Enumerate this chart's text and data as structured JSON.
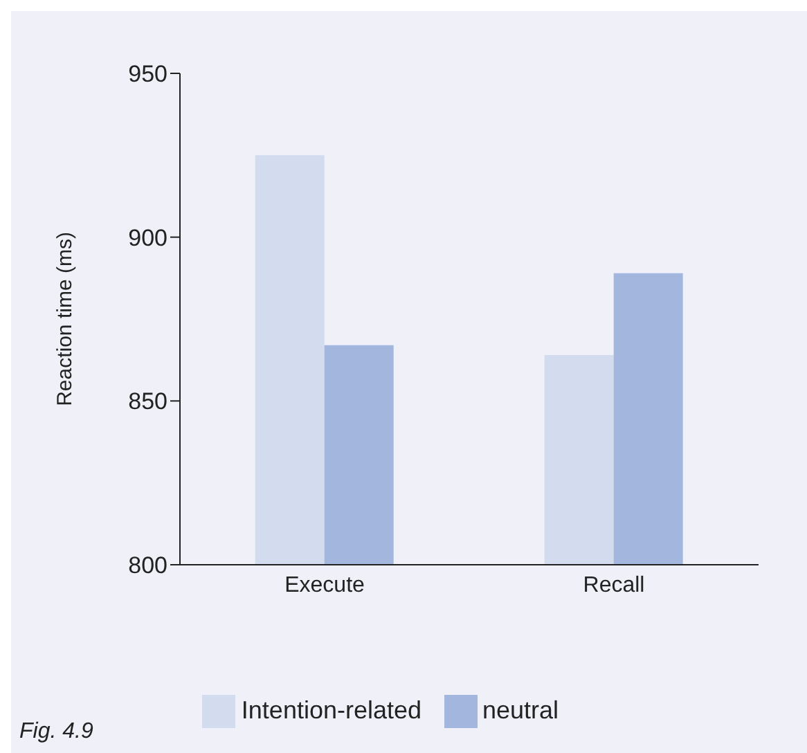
{
  "chart_data": {
    "type": "bar",
    "ylabel": "Reaction time (ms)",
    "categories": [
      "Execute",
      "Recall"
    ],
    "series": [
      {
        "name": "Intention-related",
        "color": "#d3dcee",
        "values": [
          925,
          864
        ]
      },
      {
        "name": "neutral",
        "color": "#a3b6de",
        "values": [
          867,
          889
        ]
      }
    ],
    "ylim": [
      800,
      950
    ],
    "yticks": [
      800,
      850,
      900,
      950
    ],
    "grid": false,
    "legend": "bottom",
    "annotations": [
      "Fig. 4.9"
    ]
  }
}
